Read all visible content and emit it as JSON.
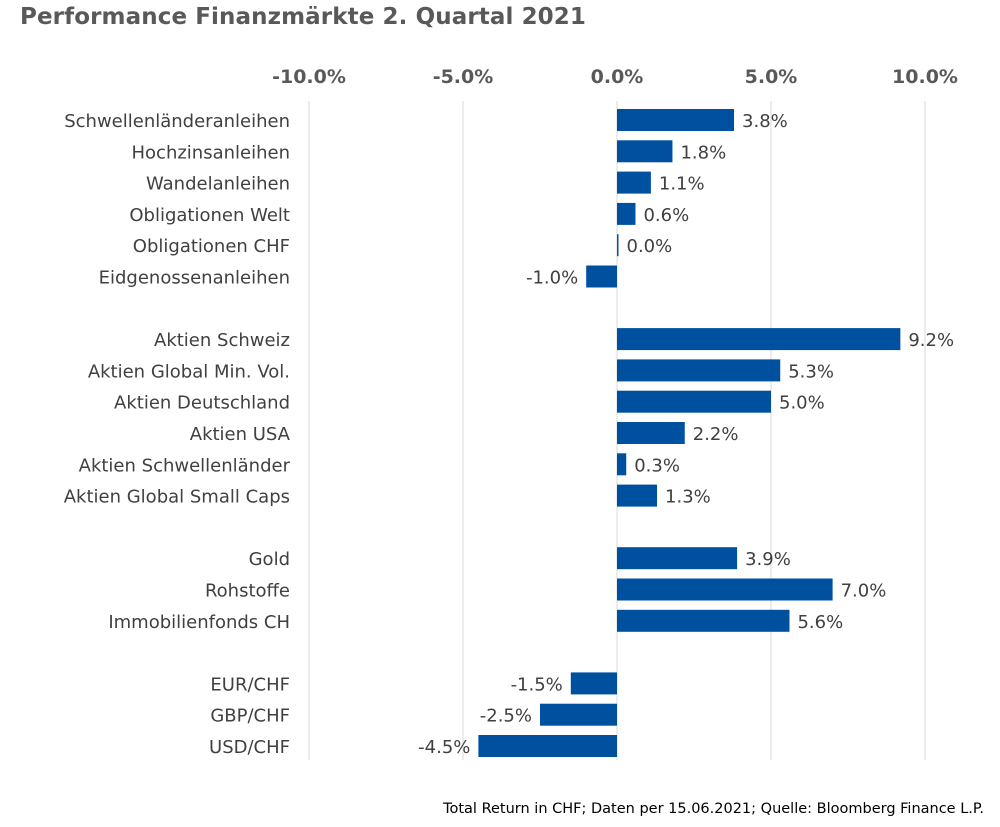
{
  "chart_data": {
    "type": "bar",
    "orientation": "horizontal",
    "title": "Performance Finanzmärkte 2. Quartal 2021",
    "xlabel": "",
    "ylabel": "",
    "xlim": [
      -0.1,
      0.1
    ],
    "x_ticks": [
      -0.1,
      -0.05,
      0.0,
      0.05,
      0.1
    ],
    "x_tick_labels": [
      "-10.0%",
      "-5.0%",
      "0.0%",
      "5.0%",
      "10.0%"
    ],
    "grid": true,
    "bar_color": "#0050A0",
    "groups": [
      {
        "categories": [
          "Schwellenländeranleihen",
          "Hochzinsanleihen",
          "Wandelanleihen",
          "Obligationen Welt",
          "Obligationen CHF",
          "Eidgenossenanleihen"
        ],
        "values": [
          0.038,
          0.018,
          0.011,
          0.006,
          0.0,
          -0.01
        ],
        "labels": [
          "3.8%",
          "1.8%",
          "1.1%",
          "0.6%",
          "0.0%",
          "-1.0%"
        ]
      },
      {
        "categories": [
          "Aktien Schweiz",
          "Aktien Global Min. Vol.",
          "Aktien Deutschland",
          "Aktien USA",
          "Aktien Schwellenländer",
          "Aktien Global Small Caps"
        ],
        "values": [
          0.092,
          0.053,
          0.05,
          0.022,
          0.003,
          0.013
        ],
        "labels": [
          "9.2%",
          "5.3%",
          "5.0%",
          "2.2%",
          "0.3%",
          "1.3%"
        ]
      },
      {
        "categories": [
          "Gold",
          "Rohstoffe",
          "Immobilienfonds CH"
        ],
        "values": [
          0.039,
          0.07,
          0.056
        ],
        "labels": [
          "3.9%",
          "7.0%",
          "5.6%"
        ]
      },
      {
        "categories": [
          "EUR/CHF",
          "GBP/CHF",
          "USD/CHF"
        ],
        "values": [
          -0.015,
          -0.025,
          -0.045
        ],
        "labels": [
          "-1.5%",
          "-2.5%",
          "-4.5%"
        ]
      }
    ],
    "footnote": "Total Return in CHF; Daten per 15.06.2021; Quelle: Bloomberg Finance L.P."
  }
}
